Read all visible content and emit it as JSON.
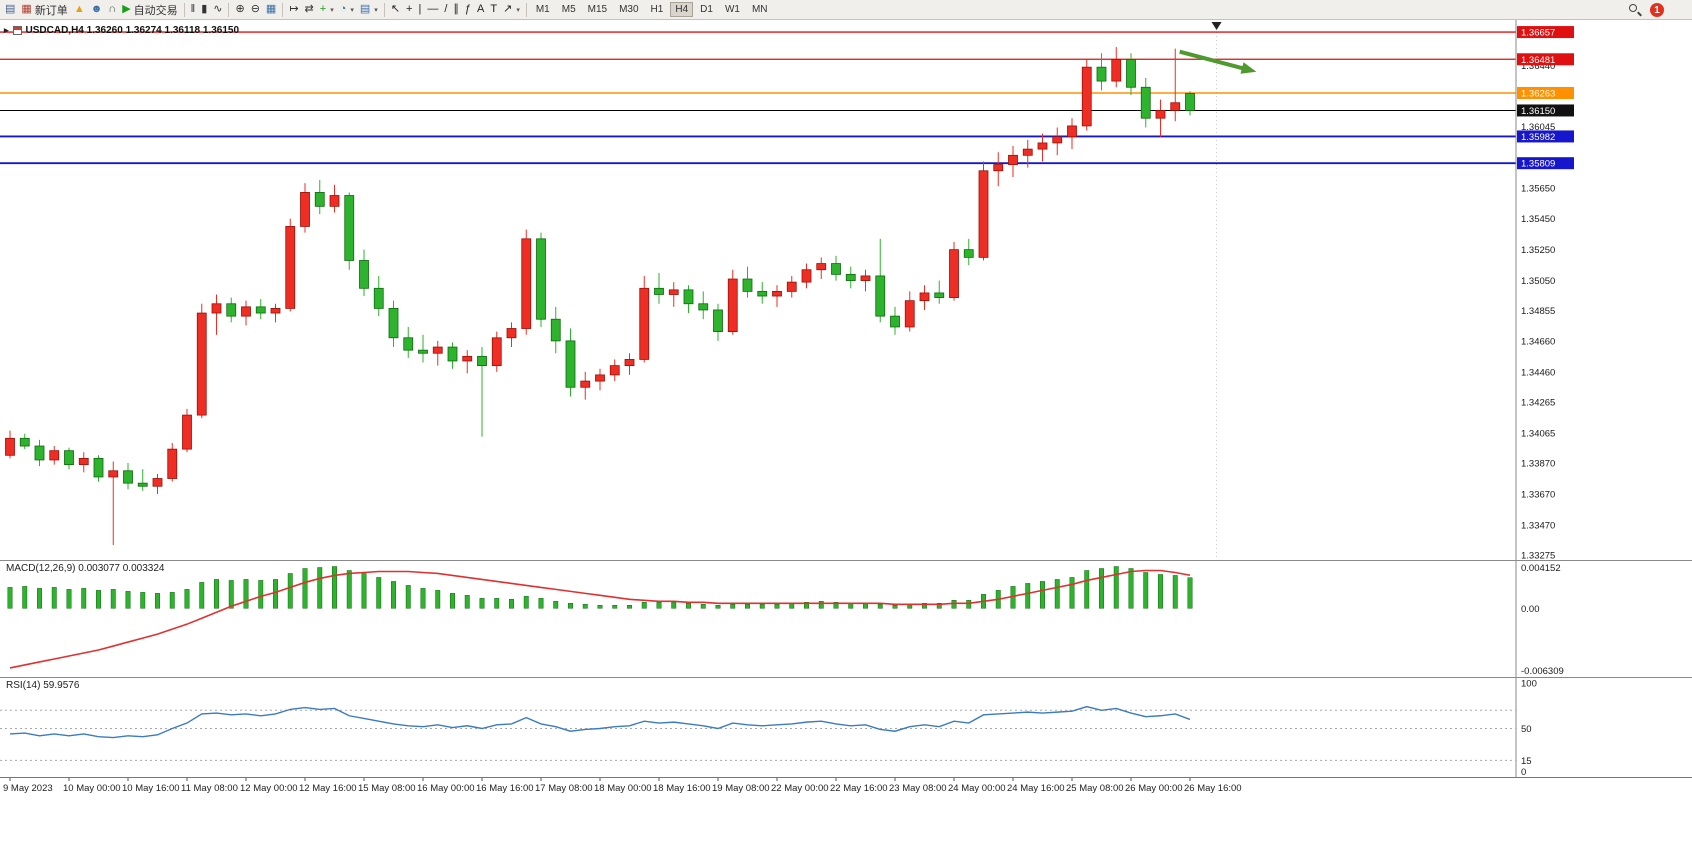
{
  "toolbar": {
    "notification_count": "1",
    "buttons": [
      {
        "name": "new-chart",
        "glyph": "▤",
        "color": "#44618c"
      },
      {
        "name": "new-order",
        "glyph": "▦",
        "color": "#b23b2e",
        "label": "新订单"
      },
      {
        "name": "metaeditor",
        "glyph": "▲",
        "color": "#e0a312"
      },
      {
        "name": "market-watch",
        "glyph": "☻",
        "color": "#3a6ea5"
      },
      {
        "name": "alerts",
        "glyph": "∩",
        "color": "#555555"
      },
      {
        "name": "autotrading",
        "glyph": "▶",
        "color": "#1a9e1a",
        "label": "自动交易"
      },
      {
        "sep": true
      },
      {
        "name": "bar-chart",
        "glyph": "‖",
        "color": "#333333"
      },
      {
        "name": "candlestick-chart",
        "glyph": "▮",
        "color": "#333333"
      },
      {
        "name": "line-chart",
        "glyph": "∿",
        "color": "#333333"
      },
      {
        "sep": true
      },
      {
        "name": "zoom-in",
        "glyph": "⊕",
        "color": "#333333"
      },
      {
        "name": "zoom-out",
        "glyph": "⊖",
        "color": "#333333"
      },
      {
        "name": "tile-windows",
        "glyph": "▦",
        "color": "#3a6ea5"
      },
      {
        "sep": true
      },
      {
        "name": "chart-shift",
        "glyph": "↦",
        "color": "#333333"
      },
      {
        "name": "auto-scroll",
        "glyph": "⇄",
        "color": "#333333"
      },
      {
        "name": "indicators",
        "glyph": "+",
        "color": "#1a9e1a",
        "dropdown": true
      },
      {
        "name": "periods",
        "glyph": "◔",
        "color": "#3a6ea5",
        "dropdown": true
      },
      {
        "name": "templates",
        "glyph": "▤",
        "color": "#3a6ea5",
        "dropdown": true
      },
      {
        "sep": true
      },
      {
        "name": "cursor",
        "glyph": "↖",
        "color": "#222222"
      },
      {
        "name": "crosshair",
        "glyph": "+",
        "color": "#222222"
      },
      {
        "name": "vertical-line",
        "glyph": "|",
        "color": "#222222"
      },
      {
        "name": "horizontal-line",
        "glyph": "—",
        "color": "#222222"
      },
      {
        "name": "trendline",
        "glyph": "/",
        "color": "#222222"
      },
      {
        "name": "channel",
        "glyph": "∥",
        "color": "#222222"
      },
      {
        "name": "fibonacci",
        "glyph": "ƒ",
        "color": "#222222"
      },
      {
        "name": "text",
        "glyph": "A",
        "color": "#222222"
      },
      {
        "name": "text-label",
        "glyph": "T",
        "color": "#222222"
      },
      {
        "name": "arrows",
        "glyph": "↗",
        "color": "#222222",
        "dropdown": true
      },
      {
        "sep": true
      }
    ],
    "timeframes": [
      "M1",
      "M5",
      "M15",
      "M30",
      "H1",
      "H4",
      "D1",
      "W1",
      "MN"
    ],
    "active_timeframe": "H4"
  },
  "chart": {
    "title_text": "USDCAD,H4 1.36260 1.36274 1.36118 1.36150",
    "symbol": "USDCAD",
    "period": "H4",
    "ohlc": {
      "open": "1.36260",
      "high": "1.36274",
      "low": "1.36118",
      "close": "1.36150"
    },
    "horizontal_lines": [
      {
        "price": 1.36657,
        "label": "1.36657",
        "color": "#e01010",
        "width": 1.3
      },
      {
        "price": 1.36481,
        "label": "1.36481",
        "color": "#e01010",
        "width": 1.3
      },
      {
        "price": 1.36263,
        "label": "1.36263",
        "color": "#ff9000",
        "width": 1.6
      },
      {
        "price": 1.35982,
        "label": "1.35982",
        "color": "#1616cc",
        "width": 1.8
      },
      {
        "price": 1.35809,
        "label": "1.35809",
        "color": "#1616cc",
        "width": 1.8
      }
    ],
    "current_price": {
      "price": 1.3615,
      "label": "1.36150",
      "color": "#000000",
      "badge_bg": "#111111"
    },
    "price_ticks": [
      "1.36440",
      "1.36045",
      "1.35650",
      "1.35450",
      "1.35250",
      "1.35050",
      "1.34855",
      "1.34660",
      "1.34460",
      "1.34265",
      "1.34065",
      "1.33870",
      "1.33670",
      "1.33470",
      "1.33275"
    ],
    "annotations": {
      "arrow": {
        "from": {
          "i": 79.3,
          "price": 1.3653
        },
        "to": {
          "i": 84.5,
          "price": 1.364
        },
        "color": "#4e9a2e"
      },
      "marker": {
        "i": 81.8,
        "price": 1.36696,
        "color": "#222222"
      },
      "separator_i": 81.8
    }
  },
  "macd_panel": {
    "label": "MACD(12,26,9) 0.003077 0.003324",
    "scale": {
      "max": "0.004152",
      "zero": "0.00",
      "min": "-0.006309"
    }
  },
  "rsi_panel": {
    "label": "RSI(14) 59.9576",
    "scale_labels": [
      {
        "v": 100,
        "label": "100"
      },
      {
        "v": 50,
        "label": "50"
      },
      {
        "v": 15,
        "label": "15"
      },
      {
        "v": 0,
        "label": "0"
      }
    ],
    "levels": [
      70,
      50,
      15
    ]
  },
  "chart_data": {
    "type": "candlestick",
    "symbol": "USDCAD",
    "timeframe": "H4",
    "ylim": [
      1.33243,
      1.36735
    ],
    "colors": {
      "up": "#ee2e24",
      "up_border": "#9c0f06",
      "down": "#2db32d",
      "down_border": "#0b6b0b",
      "macd_histogram": "#2db32d",
      "macd_signal": "#e03131",
      "rsi_line": "#3b7bbf"
    },
    "label_step": 4,
    "time_labels": [
      "9 May 2023",
      "10 May 00:00",
      "10 May 16:00",
      "11 May 08:00",
      "12 May 00:00",
      "12 May 16:00",
      "15 May 08:00",
      "16 May 00:00",
      "16 May 16:00",
      "17 May 08:00",
      "18 May 00:00",
      "18 May 16:00",
      "19 May 08:00",
      "22 May 00:00",
      "22 May 16:00",
      "23 May 08:00",
      "24 May 00:00",
      "24 May 16:00",
      "25 May 08:00",
      "26 May 00:00",
      "26 May 16:00"
    ],
    "candles": [
      [
        1.3392,
        1.3408,
        1.339,
        1.3403
      ],
      [
        1.3403,
        1.3406,
        1.3396,
        1.3398
      ],
      [
        1.3398,
        1.3402,
        1.3385,
        1.3389
      ],
      [
        1.3389,
        1.3398,
        1.3386,
        1.3395
      ],
      [
        1.3395,
        1.3397,
        1.3383,
        1.3386
      ],
      [
        1.3386,
        1.3394,
        1.3381,
        1.339
      ],
      [
        1.339,
        1.3392,
        1.3375,
        1.3378
      ],
      [
        1.3378,
        1.3388,
        1.3334,
        1.3382
      ],
      [
        1.3382,
        1.3387,
        1.337,
        1.3374
      ],
      [
        1.3374,
        1.3383,
        1.3369,
        1.3372
      ],
      [
        1.3372,
        1.338,
        1.3367,
        1.3377
      ],
      [
        1.3377,
        1.34,
        1.3375,
        1.3396
      ],
      [
        1.3396,
        1.3422,
        1.3394,
        1.3418
      ],
      [
        1.3418,
        1.349,
        1.3416,
        1.3484
      ],
      [
        1.3484,
        1.3496,
        1.347,
        1.349
      ],
      [
        1.349,
        1.3494,
        1.3478,
        1.3482
      ],
      [
        1.3482,
        1.3492,
        1.3476,
        1.3488
      ],
      [
        1.3488,
        1.3493,
        1.348,
        1.3484
      ],
      [
        1.3484,
        1.349,
        1.3478,
        1.3487
      ],
      [
        1.3487,
        1.3545,
        1.3485,
        1.354
      ],
      [
        1.354,
        1.3568,
        1.3536,
        1.3562
      ],
      [
        1.3562,
        1.357,
        1.3548,
        1.3553
      ],
      [
        1.3553,
        1.3567,
        1.3549,
        1.356
      ],
      [
        1.356,
        1.3562,
        1.3512,
        1.3518
      ],
      [
        1.3518,
        1.3525,
        1.3495,
        1.35
      ],
      [
        1.35,
        1.3508,
        1.3482,
        1.3487
      ],
      [
        1.3487,
        1.3492,
        1.3462,
        1.3468
      ],
      [
        1.3468,
        1.3475,
        1.3455,
        1.346
      ],
      [
        1.346,
        1.347,
        1.3452,
        1.3458
      ],
      [
        1.3458,
        1.3466,
        1.345,
        1.3462
      ],
      [
        1.3462,
        1.3465,
        1.3448,
        1.3453
      ],
      [
        1.3453,
        1.346,
        1.3445,
        1.3456
      ],
      [
        1.3456,
        1.3462,
        1.3404,
        1.345
      ],
      [
        1.345,
        1.3472,
        1.3446,
        1.3468
      ],
      [
        1.3468,
        1.3478,
        1.3462,
        1.3474
      ],
      [
        1.3474,
        1.3538,
        1.347,
        1.3532
      ],
      [
        1.3532,
        1.3536,
        1.3475,
        1.348
      ],
      [
        1.348,
        1.3488,
        1.3458,
        1.3466
      ],
      [
        1.3466,
        1.3474,
        1.343,
        1.3436
      ],
      [
        1.3436,
        1.3446,
        1.3428,
        1.344
      ],
      [
        1.344,
        1.3448,
        1.3434,
        1.3444
      ],
      [
        1.3444,
        1.3454,
        1.344,
        1.345
      ],
      [
        1.345,
        1.3458,
        1.3444,
        1.3454
      ],
      [
        1.3454,
        1.3508,
        1.3452,
        1.35
      ],
      [
        1.35,
        1.351,
        1.349,
        1.3496
      ],
      [
        1.3496,
        1.3504,
        1.3488,
        1.3499
      ],
      [
        1.3499,
        1.3502,
        1.3484,
        1.349
      ],
      [
        1.349,
        1.3498,
        1.348,
        1.3486
      ],
      [
        1.3486,
        1.349,
        1.3466,
        1.3472
      ],
      [
        1.3472,
        1.3512,
        1.347,
        1.3506
      ],
      [
        1.3506,
        1.3514,
        1.3494,
        1.3498
      ],
      [
        1.3498,
        1.3504,
        1.349,
        1.3495
      ],
      [
        1.3495,
        1.3502,
        1.3488,
        1.3498
      ],
      [
        1.3498,
        1.3508,
        1.3494,
        1.3504
      ],
      [
        1.3504,
        1.3516,
        1.35,
        1.3512
      ],
      [
        1.3512,
        1.352,
        1.3506,
        1.3516
      ],
      [
        1.3516,
        1.3521,
        1.3505,
        1.3509
      ],
      [
        1.3509,
        1.3514,
        1.35,
        1.3505
      ],
      [
        1.3505,
        1.3512,
        1.3498,
        1.3508
      ],
      [
        1.3508,
        1.3532,
        1.3478,
        1.3482
      ],
      [
        1.3482,
        1.3488,
        1.347,
        1.3475
      ],
      [
        1.3475,
        1.3498,
        1.3472,
        1.3492
      ],
      [
        1.3492,
        1.3502,
        1.3486,
        1.3497
      ],
      [
        1.3497,
        1.3505,
        1.349,
        1.3494
      ],
      [
        1.3494,
        1.353,
        1.3492,
        1.3525
      ],
      [
        1.3525,
        1.3532,
        1.3515,
        1.352
      ],
      [
        1.352,
        1.3582,
        1.3518,
        1.3576
      ],
      [
        1.3576,
        1.3588,
        1.3566,
        1.358
      ],
      [
        1.358,
        1.3592,
        1.3572,
        1.3586
      ],
      [
        1.3586,
        1.3596,
        1.3578,
        1.359
      ],
      [
        1.359,
        1.36,
        1.3582,
        1.3594
      ],
      [
        1.3594,
        1.3604,
        1.3586,
        1.3598
      ],
      [
        1.3598,
        1.361,
        1.359,
        1.3605
      ],
      [
        1.3605,
        1.3648,
        1.3602,
        1.3643
      ],
      [
        1.3643,
        1.3652,
        1.3628,
        1.3634
      ],
      [
        1.3634,
        1.3656,
        1.363,
        1.3648
      ],
      [
        1.3648,
        1.3652,
        1.3625,
        1.363
      ],
      [
        1.363,
        1.3636,
        1.3604,
        1.361
      ],
      [
        1.361,
        1.3622,
        1.3598,
        1.3615
      ],
      [
        1.3615,
        1.3655,
        1.3608,
        1.362
      ],
      [
        1.3626,
        1.36274,
        1.36118,
        1.3615
      ]
    ],
    "macd": {
      "ylim": [
        -0.006309,
        0.004152
      ],
      "histogram": [
        0.0021,
        0.0022,
        0.002,
        0.0021,
        0.0019,
        0.002,
        0.0018,
        0.0019,
        0.0017,
        0.0016,
        0.0015,
        0.0016,
        0.0019,
        0.0026,
        0.0029,
        0.0028,
        0.0029,
        0.0028,
        0.0029,
        0.0035,
        0.004,
        0.0041,
        0.0042,
        0.0038,
        0.0035,
        0.0031,
        0.0027,
        0.0023,
        0.002,
        0.0018,
        0.0015,
        0.0013,
        0.001,
        0.001,
        0.0009,
        0.0012,
        0.001,
        0.0007,
        0.0005,
        0.0004,
        0.0003,
        0.0003,
        0.0003,
        0.0006,
        0.0006,
        0.0006,
        0.0005,
        0.0004,
        0.0003,
        0.0004,
        0.0004,
        0.0004,
        0.0004,
        0.0005,
        0.0006,
        0.0007,
        0.0006,
        0.0005,
        0.0005,
        0.0004,
        0.0003,
        0.0004,
        0.0005,
        0.0005,
        0.0008,
        0.0008,
        0.0014,
        0.0018,
        0.0022,
        0.0025,
        0.0027,
        0.0029,
        0.0031,
        0.0038,
        0.004,
        0.0042,
        0.004,
        0.0036,
        0.0034,
        0.0033,
        0.003077
      ],
      "signal": [
        -0.006,
        -0.0057,
        -0.0054,
        -0.0051,
        -0.0048,
        -0.0045,
        -0.0042,
        -0.0038,
        -0.0034,
        -0.003,
        -0.0026,
        -0.0021,
        -0.0016,
        -0.001,
        -0.0004,
        0.0002,
        0.0007,
        0.0012,
        0.0016,
        0.0021,
        0.0026,
        0.003,
        0.0033,
        0.0035,
        0.0036,
        0.0037,
        0.0037,
        0.0037,
        0.0036,
        0.0035,
        0.0033,
        0.0031,
        0.0029,
        0.0027,
        0.0025,
        0.0023,
        0.0021,
        0.0019,
        0.0017,
        0.0015,
        0.0013,
        0.0011,
        0.0009,
        0.0008,
        0.0007,
        0.0007,
        0.0006,
        0.0006,
        0.0005,
        0.0005,
        0.0005,
        0.0005,
        0.0005,
        0.0005,
        0.0005,
        0.0005,
        0.0005,
        0.0005,
        0.0005,
        0.0005,
        0.0004,
        0.0004,
        0.0004,
        0.0004,
        0.0005,
        0.0005,
        0.0007,
        0.0009,
        0.0012,
        0.0015,
        0.0018,
        0.0021,
        0.0024,
        0.0028,
        0.0031,
        0.0034,
        0.0037,
        0.0038,
        0.0038,
        0.0036,
        0.003324
      ]
    },
    "rsi": {
      "ylim": [
        0,
        100
      ],
      "values": [
        44,
        45,
        42,
        44,
        42,
        44,
        41,
        40,
        42,
        41,
        43,
        50,
        56,
        66,
        67,
        65,
        66,
        64,
        66,
        71,
        73,
        71,
        72,
        64,
        61,
        58,
        55,
        53,
        52,
        54,
        51,
        53,
        50,
        54,
        55,
        62,
        55,
        52,
        47,
        49,
        50,
        52,
        53,
        58,
        56,
        57,
        55,
        53,
        50,
        56,
        54,
        53,
        54,
        55,
        57,
        58,
        55,
        53,
        54,
        49,
        47,
        52,
        54,
        52,
        58,
        56,
        65,
        66,
        67,
        68,
        67,
        68,
        69,
        74,
        70,
        72,
        67,
        63,
        64,
        66,
        59.96
      ]
    }
  }
}
